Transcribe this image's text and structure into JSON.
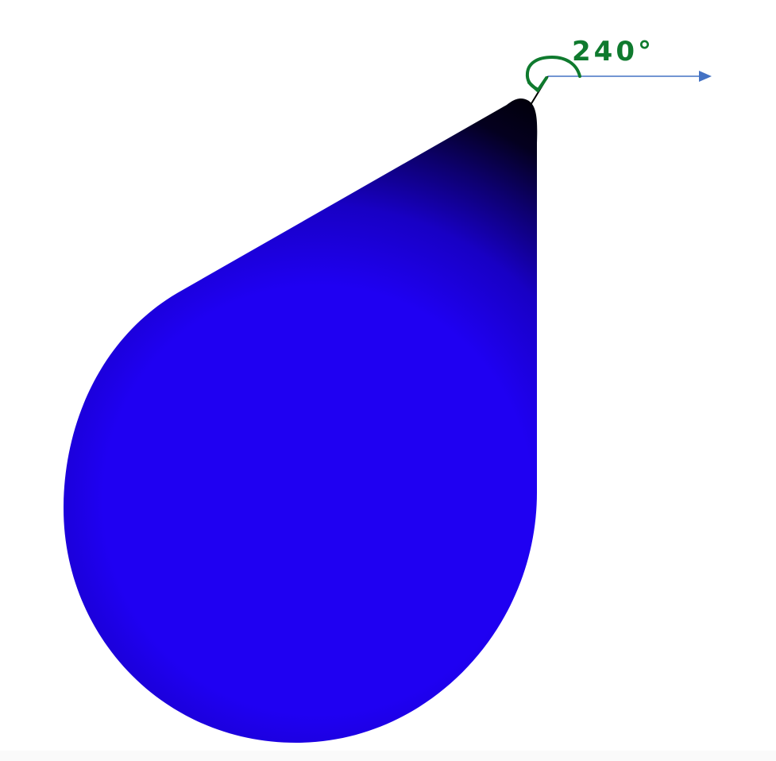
{
  "angle_annotation": {
    "label": "240°",
    "color": "#0f7a2e"
  },
  "arrow": {
    "color": "#4472c4"
  },
  "drop": {
    "fill_color": "#1f00f2",
    "tip_color": "#000000"
  }
}
